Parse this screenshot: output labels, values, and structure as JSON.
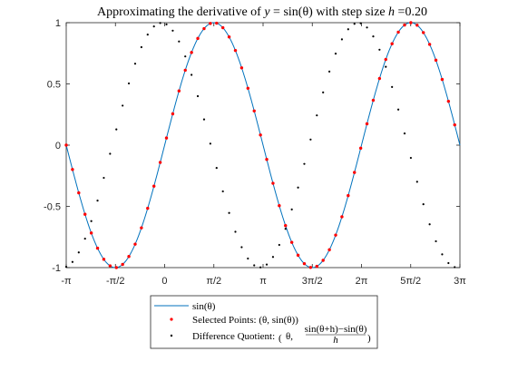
{
  "chart_data": {
    "type": "line",
    "title": "Approximating the derivative of y = sin(θ) with step size h =0.20",
    "title_parts": {
      "prefix": "Approximating the derivative of",
      "var_y": "y",
      "equals": " = ",
      "sin": "sin",
      "theta_expr": "(θ)",
      "middle": " with step size ",
      "var_h": "h",
      "suffix": " =0.20"
    },
    "xlim": [
      -3.14159,
      9.42478
    ],
    "ylim": [
      -1,
      1
    ],
    "x_ticks": [
      {
        "value": -3.14159,
        "label": "-π"
      },
      {
        "value": -1.5708,
        "label": "-π/2"
      },
      {
        "value": 0,
        "label": "0"
      },
      {
        "value": 1.5708,
        "label": "π/2"
      },
      {
        "value": 3.14159,
        "label": "π"
      },
      {
        "value": 4.71239,
        "label": "3π/2"
      },
      {
        "value": 6.28319,
        "label": "2π"
      },
      {
        "value": 7.85398,
        "label": "5π/2"
      },
      {
        "value": 9.42478,
        "label": "3π"
      }
    ],
    "y_ticks": [
      {
        "value": -1,
        "label": "-1"
      },
      {
        "value": -0.5,
        "label": "-0.5"
      },
      {
        "value": 0,
        "label": "0"
      },
      {
        "value": 0.5,
        "label": "0.5"
      },
      {
        "value": 1,
        "label": "1"
      }
    ],
    "grid": false,
    "legend_position": "bottom-outside",
    "step_size": 0.2,
    "series": [
      {
        "name": "sin(θ)",
        "kind": "line",
        "color": "#0072BD",
        "function": "sin"
      },
      {
        "name": "Selected Points: (θ, sin(θ))",
        "kind": "markers",
        "color": "#FF0000",
        "point_count": 62
      },
      {
        "name": "Difference Quotient: (θ, (sin(θ+h)−sin(θ))/h)",
        "kind": "markers",
        "color": "#000000",
        "point_count": 62
      }
    ],
    "legend": {
      "entry1": "sin(θ)",
      "entry2": "Selected Points: (θ, sin(θ))",
      "entry3_prefix": "Difference Quotient:",
      "entry3_theta": "θ,",
      "entry3_numerator": "sin(θ+h)−sin(θ)",
      "entry3_denominator": "h"
    }
  }
}
